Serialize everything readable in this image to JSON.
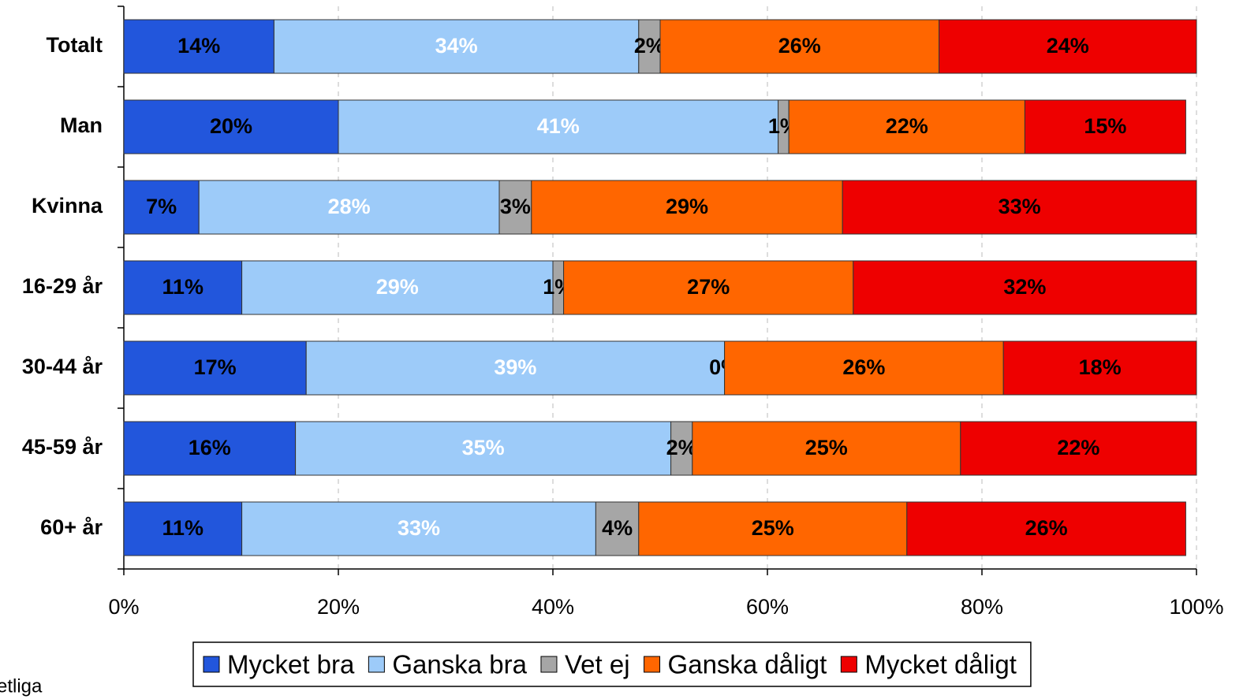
{
  "chart_data": {
    "type": "stacked_barh",
    "categories": [
      "Totalt",
      "Man",
      "Kvinna",
      "16-29 år",
      "30-44 år",
      "45-59 år",
      "60+ år"
    ],
    "series": [
      {
        "name": "Mycket bra",
        "color": "#2256dc",
        "label_color": "#000000",
        "values": [
          14,
          20,
          7,
          11,
          17,
          16,
          11
        ],
        "value_labels": [
          "14%",
          "20%",
          "7%",
          "11%",
          "17%",
          "16%",
          "11%"
        ]
      },
      {
        "name": "Ganska bra",
        "color": "#9dcbf9",
        "label_color": "#ffffff",
        "values": [
          34,
          41,
          28,
          29,
          39,
          35,
          33
        ],
        "value_labels": [
          "34%",
          "41%",
          "28%",
          "29%",
          "39%",
          "35%",
          "33%"
        ]
      },
      {
        "name": "Vet ej",
        "color": "#a6a6a6",
        "label_color": "#000000",
        "values": [
          2,
          1,
          3,
          1,
          0,
          2,
          4
        ],
        "value_labels": [
          "2%",
          "1%",
          "3%",
          "1%",
          "0%",
          "2%",
          "4%"
        ]
      },
      {
        "name": "Ganska dåligt",
        "color": "#ff6600",
        "label_color": "#000000",
        "values": [
          26,
          22,
          29,
          27,
          26,
          25,
          25
        ],
        "value_labels": [
          "26%",
          "22%",
          "29%",
          "27%",
          "26%",
          "25%",
          "25%"
        ]
      },
      {
        "name": "Mycket dåligt",
        "color": "#ee0000",
        "label_color": "#000000",
        "values": [
          24,
          15,
          33,
          32,
          18,
          22,
          26
        ],
        "value_labels": [
          "24%",
          "15%",
          "33%",
          "32%",
          "18%",
          "22%",
          "26%"
        ]
      }
    ],
    "xlim": [
      0,
      100
    ],
    "xticks": [
      {
        "value": 0,
        "label": "0%"
      },
      {
        "value": 20,
        "label": "20%"
      },
      {
        "value": 40,
        "label": "40%"
      },
      {
        "value": 60,
        "label": "60%"
      },
      {
        "value": 80,
        "label": "80%"
      },
      {
        "value": 100,
        "label": "100%"
      }
    ],
    "grid": true,
    "legend": "bottom",
    "note": "etliga"
  }
}
